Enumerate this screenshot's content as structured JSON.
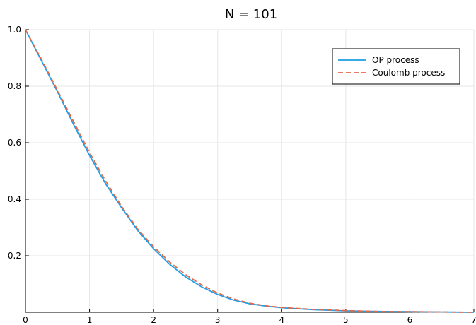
{
  "chart_data": {
    "type": "line",
    "title": "N = 101",
    "xlabel": "",
    "ylabel": "",
    "xlim": [
      0,
      7
    ],
    "ylim": [
      0,
      1.0
    ],
    "xticks": [
      0,
      1,
      2,
      3,
      4,
      5,
      6,
      7
    ],
    "xtick_labels": [
      "0",
      "1",
      "2",
      "3",
      "4",
      "5",
      "6",
      "7"
    ],
    "yticks": [
      0.2,
      0.4,
      0.6,
      0.8,
      1.0
    ],
    "ytick_labels": [
      "0.2",
      "0.4",
      "0.6",
      "0.8",
      "1.0"
    ],
    "grid": true,
    "legend_position": "top-right",
    "series": [
      {
        "name": "OP process",
        "color": "#1f9ee8",
        "style": "solid",
        "x": [
          0,
          0.25,
          0.5,
          0.75,
          1.0,
          1.25,
          1.5,
          1.75,
          2.0,
          2.25,
          2.5,
          2.75,
          3.0,
          3.25,
          3.5,
          3.75,
          4.0,
          4.5,
          5.0,
          5.5,
          6.0,
          6.5,
          7.0
        ],
        "y": [
          1.0,
          0.89,
          0.78,
          0.665,
          0.555,
          0.455,
          0.37,
          0.29,
          0.225,
          0.17,
          0.125,
          0.09,
          0.063,
          0.043,
          0.03,
          0.022,
          0.016,
          0.009,
          0.005,
          0.003,
          0.002,
          0.001,
          0.0
        ]
      },
      {
        "name": "Coulomb process",
        "color": "#e26a4b",
        "style": "dashed",
        "x": [
          0,
          0.25,
          0.5,
          0.75,
          1.0,
          1.25,
          1.5,
          1.75,
          2.0,
          2.25,
          2.5,
          2.75,
          3.0,
          3.25,
          3.5,
          3.75,
          4.0,
          4.5,
          5.0,
          5.5,
          6.0,
          6.5,
          7.0
        ],
        "y": [
          1.0,
          0.895,
          0.785,
          0.675,
          0.565,
          0.465,
          0.375,
          0.295,
          0.232,
          0.178,
          0.133,
          0.097,
          0.068,
          0.047,
          0.032,
          0.023,
          0.017,
          0.01,
          0.006,
          0.003,
          0.002,
          0.001,
          0.0
        ]
      }
    ]
  }
}
